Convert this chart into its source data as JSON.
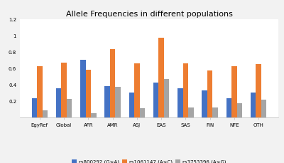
{
  "title": "Allele Frequencies in different populations",
  "categories": [
    "EgyRef",
    "Global",
    "AFR",
    "AMR",
    "ASJ",
    "EAS",
    "SAS",
    "FIN",
    "NFE",
    "OTH"
  ],
  "series": [
    {
      "label": "rs800292 (G>A)",
      "color": "#4472C4",
      "values": [
        0.23,
        0.35,
        0.7,
        0.38,
        0.3,
        0.42,
        0.35,
        0.33,
        0.23,
        0.3
      ]
    },
    {
      "label": "rs1061147 (A>C)",
      "color": "#ED7D31",
      "values": [
        0.62,
        0.67,
        0.58,
        0.83,
        0.66,
        0.97,
        0.66,
        0.57,
        0.62,
        0.65
      ]
    },
    {
      "label": "rs3753396 (A>G)",
      "color": "#A5A5A5",
      "values": [
        0.08,
        0.22,
        0.05,
        0.37,
        0.11,
        0.47,
        0.12,
        0.12,
        0.17,
        0.21
      ]
    }
  ],
  "ylim": [
    0,
    1.2
  ],
  "yticks": [
    0.2,
    0.4,
    0.6,
    0.8,
    1.0,
    1.2
  ],
  "ytick_labels": [
    "0.2",
    "0.4",
    "0.6",
    "0.8",
    "1",
    "1.2"
  ],
  "background_color": "#f2f2f2",
  "plot_bg_color": "#ffffff",
  "grid_color": "#ffffff",
  "title_fontsize": 8,
  "tick_fontsize": 5,
  "legend_fontsize": 5,
  "bar_width": 0.22
}
